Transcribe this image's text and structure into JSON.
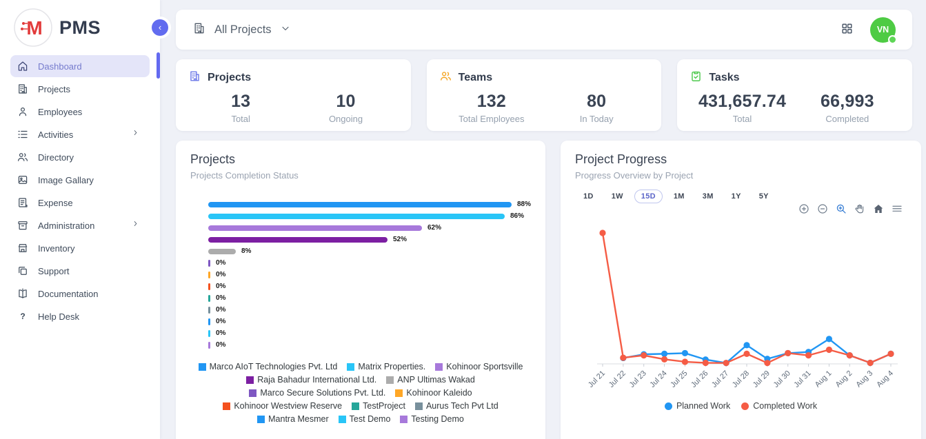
{
  "app": {
    "name": "PMS"
  },
  "sidebar": {
    "items": [
      {
        "label": "Dashboard",
        "icon": "home-icon",
        "active": true,
        "chevron": false
      },
      {
        "label": "Projects",
        "icon": "building-icon",
        "active": false,
        "chevron": false
      },
      {
        "label": "Employees",
        "icon": "person-icon",
        "active": false,
        "chevron": false
      },
      {
        "label": "Activities",
        "icon": "list-icon",
        "active": false,
        "chevron": true
      },
      {
        "label": "Directory",
        "icon": "people-icon",
        "active": false,
        "chevron": false
      },
      {
        "label": "Image Gallary",
        "icon": "image-icon",
        "active": false,
        "chevron": false
      },
      {
        "label": "Expense",
        "icon": "receipt-icon",
        "active": false,
        "chevron": false
      },
      {
        "label": "Administration",
        "icon": "archive-icon",
        "active": false,
        "chevron": true
      },
      {
        "label": "Inventory",
        "icon": "store-icon",
        "active": false,
        "chevron": false
      },
      {
        "label": "Support",
        "icon": "copy-icon",
        "active": false,
        "chevron": false
      },
      {
        "label": "Documentation",
        "icon": "book-icon",
        "active": false,
        "chevron": false
      },
      {
        "label": "Help Desk",
        "icon": "help-icon",
        "active": false,
        "chevron": false
      }
    ]
  },
  "header": {
    "project_filter": "All Projects",
    "avatar_initials": "VN",
    "avatar_color": "#4ECB44"
  },
  "stats": [
    {
      "title": "Projects",
      "icon": "building-icon",
      "icon_color": "#6D79E8",
      "metrics": [
        {
          "value": "13",
          "label": "Total"
        },
        {
          "value": "10",
          "label": "Ongoing"
        }
      ]
    },
    {
      "title": "Teams",
      "icon": "people-icon",
      "icon_color": "#F5A623",
      "metrics": [
        {
          "value": "132",
          "label": "Total Employees"
        },
        {
          "value": "80",
          "label": "In Today"
        }
      ]
    },
    {
      "title": "Tasks",
      "icon": "clipboard-check-icon",
      "icon_color": "#4CC84C",
      "metrics": [
        {
          "value": "431,657.74",
          "label": "Total"
        },
        {
          "value": "66,993",
          "label": "Completed"
        }
      ]
    }
  ],
  "chart_data": [
    {
      "type": "bar",
      "orientation": "horizontal",
      "title": "Projects",
      "subtitle": "Projects Completion Status",
      "value_suffix": "%",
      "xlim": [
        0,
        100
      ],
      "categories": [
        "Marco AIoT Technologies Pvt. Ltd",
        "Matrix Properties.",
        "Kohinoor Sportsville",
        "Raja Bahadur International Ltd.",
        "ANP Ultimas Wakad",
        "Marco Secure Solutions Pvt. Ltd.",
        "Kohinoor Kaleido",
        "Kohinoor Westview Reserve",
        "TestProject",
        "Aurus Tech Pvt Ltd",
        "Mantra Mesmer",
        "Test Demo",
        "Testing Demo"
      ],
      "values": [
        88,
        86,
        62,
        52,
        8,
        0,
        0,
        0,
        0,
        0,
        0,
        0,
        0
      ],
      "colors": [
        "#2196F3",
        "#29C5F7",
        "#A779DB",
        "#7C1FA2",
        "#ACACAC",
        "#7E57C2",
        "#FFA726",
        "#F4511E",
        "#26A69A",
        "#78909C",
        "#2196F3",
        "#29C5F7",
        "#A779DB"
      ],
      "legend_position": "bottom"
    },
    {
      "type": "line",
      "title": "Project Progress",
      "subtitle": "Progress Overview by Project",
      "range_buttons": [
        "1D",
        "1W",
        "15D",
        "1M",
        "3M",
        "1Y",
        "5Y"
      ],
      "selected_range": "15D",
      "toolbar_icons": [
        "zoom-in-icon",
        "zoom-out-icon",
        "selection-zoom-icon",
        "pan-icon",
        "home-icon",
        "menu-icon"
      ],
      "toolbar_active": "selection-zoom-icon",
      "x": [
        "Jul 21",
        "Jul 22",
        "Jul 23",
        "Jul 24",
        "Jul 25",
        "Jul 26",
        "Jul 27",
        "Jul 28",
        "Jul 29",
        "Jul 30",
        "Jul 31",
        "Aug 1",
        "Aug 2",
        "Aug 3",
        "Aug 4"
      ],
      "ylim": [
        0,
        105
      ],
      "grid": false,
      "legend_position": "bottom",
      "series": [
        {
          "name": "Planned Work",
          "color": "#2196F3",
          "values": [
            null,
            4.5,
            7.3,
            7.7,
            8.2,
            3.3,
            0.7,
            14.3,
            3.8,
            8.2,
            9.1,
            19,
            6.5,
            0.8,
            7.7
          ]
        },
        {
          "name": "Completed Work",
          "color": "#F55C45",
          "values": [
            100,
            4.7,
            6.5,
            3.5,
            1.6,
            0.8,
            0.7,
            7.7,
            0.7,
            8.2,
            6.5,
            10.8,
            6.5,
            0.8,
            7.7
          ]
        }
      ]
    }
  ]
}
